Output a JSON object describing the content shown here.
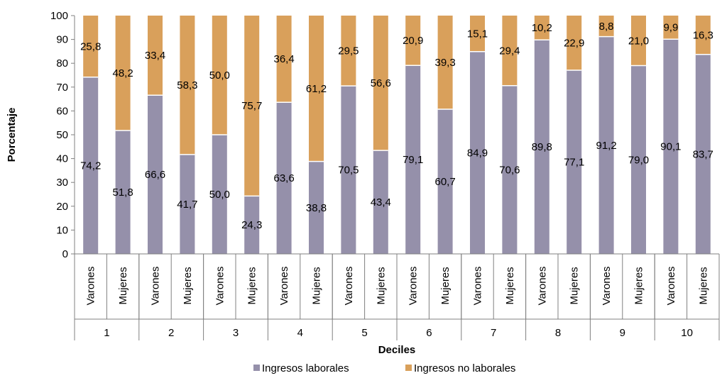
{
  "chart_data": {
    "type": "bar",
    "stacked": true,
    "percent_stacked": true,
    "ylabel": "Porcentaje",
    "xlabel": "Deciles",
    "ylim": [
      0,
      100
    ],
    "yticks": [
      0,
      10,
      20,
      30,
      40,
      50,
      60,
      70,
      80,
      90,
      100
    ],
    "groups": [
      "1",
      "2",
      "3",
      "4",
      "5",
      "6",
      "7",
      "8",
      "9",
      "10"
    ],
    "subcategories": [
      "Varones",
      "Mujeres"
    ],
    "series": [
      {
        "name": "Ingresos laborales",
        "color": "#9590aa",
        "labels": [
          "74,2",
          "51,8",
          "66,6",
          "41,7",
          "50,0",
          "24,3",
          "63,6",
          "38,8",
          "70,5",
          "43,4",
          "79,1",
          "60,7",
          "84,9",
          "70,6",
          "89,8",
          "77,1",
          "91,2",
          "79,0",
          "90,1",
          "83,7"
        ],
        "values": [
          74.2,
          51.8,
          66.6,
          41.7,
          50.0,
          24.3,
          63.6,
          38.8,
          70.5,
          43.4,
          79.1,
          60.7,
          84.9,
          70.6,
          89.8,
          77.1,
          91.2,
          79.0,
          90.1,
          83.7
        ]
      },
      {
        "name": "Ingresos no laborales",
        "color": "#d9a05b",
        "labels": [
          "25,8",
          "48,2",
          "33,4",
          "58,3",
          "50,0",
          "75,7",
          "36,4",
          "61,2",
          "29,5",
          "56,6",
          "20,9",
          "39,3",
          "15,1",
          "29,4",
          "10,2",
          "22,9",
          "8,8",
          "21,0",
          "9,9",
          "16,3"
        ],
        "values": [
          25.8,
          48.2,
          33.4,
          58.3,
          50.0,
          75.7,
          36.4,
          61.2,
          29.5,
          56.6,
          20.9,
          39.3,
          15.1,
          29.4,
          10.2,
          22.9,
          8.8,
          21.0,
          9.9,
          16.3
        ]
      }
    ],
    "legend_position": "bottom",
    "grid": false
  }
}
